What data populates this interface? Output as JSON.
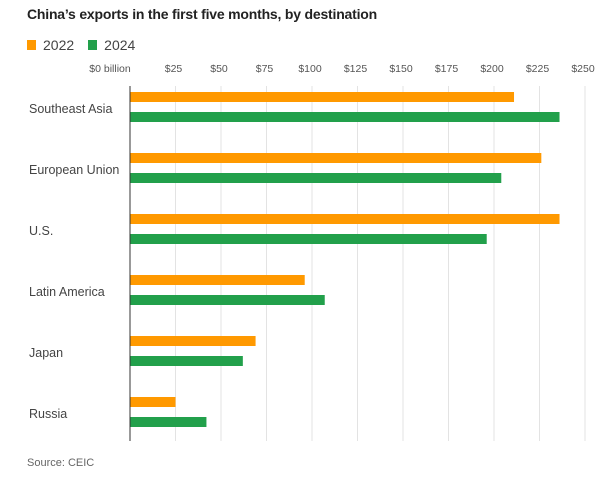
{
  "chart_data": {
    "type": "bar",
    "orientation": "horizontal",
    "title": "China’s exports in the first five months, by destination",
    "xlabel": "",
    "ylabel": "",
    "source": "Source: CEIC",
    "categories": [
      "Southeast Asia",
      "European Union",
      "U.S.",
      "Latin America",
      "Japan",
      "Russia"
    ],
    "series": [
      {
        "name": "2022",
        "color": "#ff9900",
        "values": [
          211,
          226,
          236,
          96,
          69,
          25
        ]
      },
      {
        "name": "2024",
        "color": "#22a04b",
        "values": [
          236,
          204,
          196,
          107,
          62,
          42
        ]
      }
    ],
    "xlim": [
      0,
      250
    ],
    "xticks": [
      0,
      25,
      50,
      75,
      100,
      125,
      150,
      175,
      200,
      225,
      250
    ],
    "xtick_labels": [
      "$0 billion",
      "$25",
      "$50",
      "$75",
      "$100",
      "$125",
      "$150",
      "$175",
      "$200",
      "$225",
      "$250"
    ],
    "grid": true,
    "legend_position": "top-left",
    "units": "billion USD"
  }
}
